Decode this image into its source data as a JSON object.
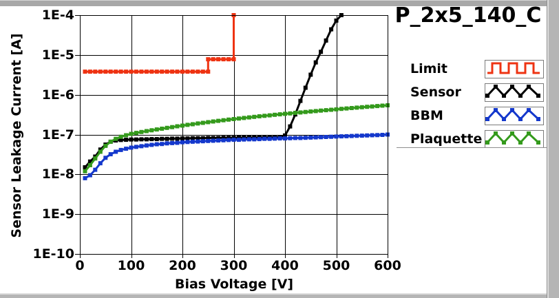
{
  "window": {
    "title": "P_2x5_140_C"
  },
  "chart_data": {
    "type": "line",
    "title": "P_2x5_140_C",
    "xlabel": "Bias Voltage [V]",
    "ylabel": "Sensor Leakage Current [A]",
    "xlim": [
      0,
      600
    ],
    "ylog": true,
    "ylim_exp": [
      -10,
      -4
    ],
    "grid": true,
    "legend_position": "right",
    "x_ticks": [
      0,
      100,
      200,
      300,
      400,
      500,
      600
    ],
    "y_ticks": [
      {
        "label": "1E-4",
        "exp": -4
      },
      {
        "label": "1E-5",
        "exp": -5
      },
      {
        "label": "1E-6",
        "exp": -6
      },
      {
        "label": "1E-7",
        "exp": -7
      },
      {
        "label": "1E-8",
        "exp": -8
      },
      {
        "label": "1E-9",
        "exp": -9
      },
      {
        "label": "1E-10",
        "exp": -10
      }
    ],
    "series": [
      {
        "name": "Limit",
        "color": "#ee3312",
        "icon_style": "square-wave",
        "points": [
          [
            10,
            3.8e-06
          ],
          [
            20,
            3.8e-06
          ],
          [
            30,
            3.8e-06
          ],
          [
            40,
            3.8e-06
          ],
          [
            50,
            3.8e-06
          ],
          [
            60,
            3.8e-06
          ],
          [
            70,
            3.8e-06
          ],
          [
            80,
            3.8e-06
          ],
          [
            90,
            3.8e-06
          ],
          [
            100,
            3.8e-06
          ],
          [
            110,
            3.8e-06
          ],
          [
            120,
            3.8e-06
          ],
          [
            130,
            3.8e-06
          ],
          [
            140,
            3.8e-06
          ],
          [
            150,
            3.8e-06
          ],
          [
            160,
            3.8e-06
          ],
          [
            170,
            3.8e-06
          ],
          [
            180,
            3.8e-06
          ],
          [
            190,
            3.8e-06
          ],
          [
            200,
            3.8e-06
          ],
          [
            210,
            3.8e-06
          ],
          [
            220,
            3.8e-06
          ],
          [
            230,
            3.8e-06
          ],
          [
            240,
            3.8e-06
          ],
          [
            250,
            3.8e-06
          ],
          [
            250,
            7.8e-06
          ],
          [
            260,
            7.8e-06
          ],
          [
            270,
            7.8e-06
          ],
          [
            280,
            7.8e-06
          ],
          [
            290,
            7.8e-06
          ],
          [
            300,
            7.8e-06
          ],
          [
            300,
            0.0001
          ]
        ]
      },
      {
        "name": "Sensor",
        "color": "#000000",
        "icon_style": "triangle-wave",
        "points": [
          [
            10,
            1.5e-08
          ],
          [
            20,
            2.1e-08
          ],
          [
            30,
            2.8e-08
          ],
          [
            40,
            4.2e-08
          ],
          [
            50,
            5.6e-08
          ],
          [
            60,
            6.6e-08
          ],
          [
            70,
            7.1e-08
          ],
          [
            80,
            7.3e-08
          ],
          [
            90,
            7.4e-08
          ],
          [
            100,
            7.5e-08
          ],
          [
            110,
            7.5e-08
          ],
          [
            120,
            7.6e-08
          ],
          [
            130,
            7.6e-08
          ],
          [
            140,
            7.7e-08
          ],
          [
            150,
            7.7e-08
          ],
          [
            160,
            7.8e-08
          ],
          [
            170,
            7.8e-08
          ],
          [
            180,
            7.9e-08
          ],
          [
            190,
            7.9e-08
          ],
          [
            200,
            8e-08
          ],
          [
            210,
            8e-08
          ],
          [
            220,
            8.1e-08
          ],
          [
            230,
            8.1e-08
          ],
          [
            240,
            8.1e-08
          ],
          [
            250,
            8.2e-08
          ],
          [
            260,
            8.2e-08
          ],
          [
            270,
            8.2e-08
          ],
          [
            280,
            8.3e-08
          ],
          [
            290,
            8.3e-08
          ],
          [
            300,
            8.3e-08
          ],
          [
            310,
            8.4e-08
          ],
          [
            320,
            8.4e-08
          ],
          [
            330,
            8.4e-08
          ],
          [
            340,
            8.5e-08
          ],
          [
            350,
            8.5e-08
          ],
          [
            360,
            8.5e-08
          ],
          [
            370,
            8.6e-08
          ],
          [
            380,
            8.6e-08
          ],
          [
            390,
            8.7e-08
          ],
          [
            400,
            9.5e-08
          ],
          [
            410,
            1.6e-07
          ],
          [
            420,
            3.2e-07
          ],
          [
            430,
            7e-07
          ],
          [
            440,
            1.5e-06
          ],
          [
            450,
            3.2e-06
          ],
          [
            460,
            6.5e-06
          ],
          [
            470,
            1.2e-05
          ],
          [
            480,
            2.3e-05
          ],
          [
            490,
            4.4e-05
          ],
          [
            500,
            7.3e-05
          ],
          [
            510,
            0.0001
          ]
        ]
      },
      {
        "name": "BBM",
        "color": "#1438cc",
        "icon_style": "triangle-wave",
        "points": [
          [
            10,
            8e-09
          ],
          [
            20,
            9.5e-09
          ],
          [
            30,
            1.3e-08
          ],
          [
            40,
            1.9e-08
          ],
          [
            50,
            2.6e-08
          ],
          [
            60,
            3.2e-08
          ],
          [
            70,
            3.7e-08
          ],
          [
            80,
            4.1e-08
          ],
          [
            90,
            4.4e-08
          ],
          [
            100,
            4.7e-08
          ],
          [
            110,
            4.9e-08
          ],
          [
            120,
            5.1e-08
          ],
          [
            130,
            5.3e-08
          ],
          [
            140,
            5.5e-08
          ],
          [
            150,
            5.7e-08
          ],
          [
            160,
            5.8e-08
          ],
          [
            170,
            6e-08
          ],
          [
            180,
            6.1e-08
          ],
          [
            190,
            6.2e-08
          ],
          [
            200,
            6.4e-08
          ],
          [
            210,
            6.5e-08
          ],
          [
            220,
            6.6e-08
          ],
          [
            230,
            6.7e-08
          ],
          [
            240,
            6.8e-08
          ],
          [
            250,
            6.9e-08
          ],
          [
            260,
            7e-08
          ],
          [
            270,
            7.1e-08
          ],
          [
            280,
            7.2e-08
          ],
          [
            290,
            7.3e-08
          ],
          [
            300,
            7.4e-08
          ],
          [
            310,
            7.4e-08
          ],
          [
            320,
            7.5e-08
          ],
          [
            330,
            7.6e-08
          ],
          [
            340,
            7.6e-08
          ],
          [
            350,
            7.7e-08
          ],
          [
            360,
            7.8e-08
          ],
          [
            370,
            7.8e-08
          ],
          [
            380,
            7.9e-08
          ],
          [
            390,
            8e-08
          ],
          [
            400,
            8e-08
          ],
          [
            410,
            8.1e-08
          ],
          [
            420,
            8.2e-08
          ],
          [
            430,
            8.2e-08
          ],
          [
            440,
            8.3e-08
          ],
          [
            450,
            8.4e-08
          ],
          [
            460,
            8.5e-08
          ],
          [
            470,
            8.6e-08
          ],
          [
            480,
            8.7e-08
          ],
          [
            490,
            8.8e-08
          ],
          [
            500,
            8.9e-08
          ],
          [
            510,
            9e-08
          ],
          [
            520,
            9.1e-08
          ],
          [
            530,
            9.2e-08
          ],
          [
            540,
            9.3e-08
          ],
          [
            550,
            9.4e-08
          ],
          [
            560,
            9.5e-08
          ],
          [
            570,
            9.6e-08
          ],
          [
            580,
            9.7e-08
          ],
          [
            590,
            9.8e-08
          ],
          [
            600,
            1e-07
          ]
        ]
      },
      {
        "name": "Plaquette",
        "color": "#349a1c",
        "icon_style": "triangle-wave",
        "points": [
          [
            10,
            1.2e-08
          ],
          [
            20,
            1.7e-08
          ],
          [
            30,
            2.5e-08
          ],
          [
            40,
            3.7e-08
          ],
          [
            50,
            5.2e-08
          ],
          [
            60,
            6.6e-08
          ],
          [
            70,
            7.8e-08
          ],
          [
            80,
            8.8e-08
          ],
          [
            90,
            9.6e-08
          ],
          [
            100,
            1.04e-07
          ],
          [
            110,
            1.1e-07
          ],
          [
            120,
            1.16e-07
          ],
          [
            130,
            1.22e-07
          ],
          [
            140,
            1.28e-07
          ],
          [
            150,
            1.34e-07
          ],
          [
            160,
            1.4e-07
          ],
          [
            170,
            1.47e-07
          ],
          [
            180,
            1.54e-07
          ],
          [
            190,
            1.61e-07
          ],
          [
            200,
            1.68e-07
          ],
          [
            210,
            1.75e-07
          ],
          [
            220,
            1.82e-07
          ],
          [
            230,
            1.9e-07
          ],
          [
            240,
            1.97e-07
          ],
          [
            250,
            2.05e-07
          ],
          [
            260,
            2.13e-07
          ],
          [
            270,
            2.21e-07
          ],
          [
            280,
            2.29e-07
          ],
          [
            290,
            2.37e-07
          ],
          [
            300,
            2.45e-07
          ],
          [
            310,
            2.53e-07
          ],
          [
            320,
            2.61e-07
          ],
          [
            330,
            2.7e-07
          ],
          [
            340,
            2.78e-07
          ],
          [
            350,
            2.87e-07
          ],
          [
            360,
            2.95e-07
          ],
          [
            370,
            3.04e-07
          ],
          [
            380,
            3.13e-07
          ],
          [
            390,
            3.22e-07
          ],
          [
            400,
            3.31e-07
          ],
          [
            410,
            3.4e-07
          ],
          [
            420,
            3.5e-07
          ],
          [
            430,
            3.59e-07
          ],
          [
            440,
            3.69e-07
          ],
          [
            450,
            3.79e-07
          ],
          [
            460,
            3.89e-07
          ],
          [
            470,
            3.99e-07
          ],
          [
            480,
            4.09e-07
          ],
          [
            490,
            4.2e-07
          ],
          [
            500,
            4.3e-07
          ],
          [
            510,
            4.41e-07
          ],
          [
            520,
            4.52e-07
          ],
          [
            530,
            4.63e-07
          ],
          [
            540,
            4.74e-07
          ],
          [
            550,
            4.85e-07
          ],
          [
            560,
            4.97e-07
          ],
          [
            570,
            5.08e-07
          ],
          [
            580,
            5.2e-07
          ],
          [
            590,
            5.32e-07
          ],
          [
            600,
            5.44e-07
          ]
        ]
      }
    ],
    "legend": [
      {
        "label": "Limit"
      },
      {
        "label": "Sensor"
      },
      {
        "label": "BBM"
      },
      {
        "label": "Plaquette"
      }
    ]
  }
}
